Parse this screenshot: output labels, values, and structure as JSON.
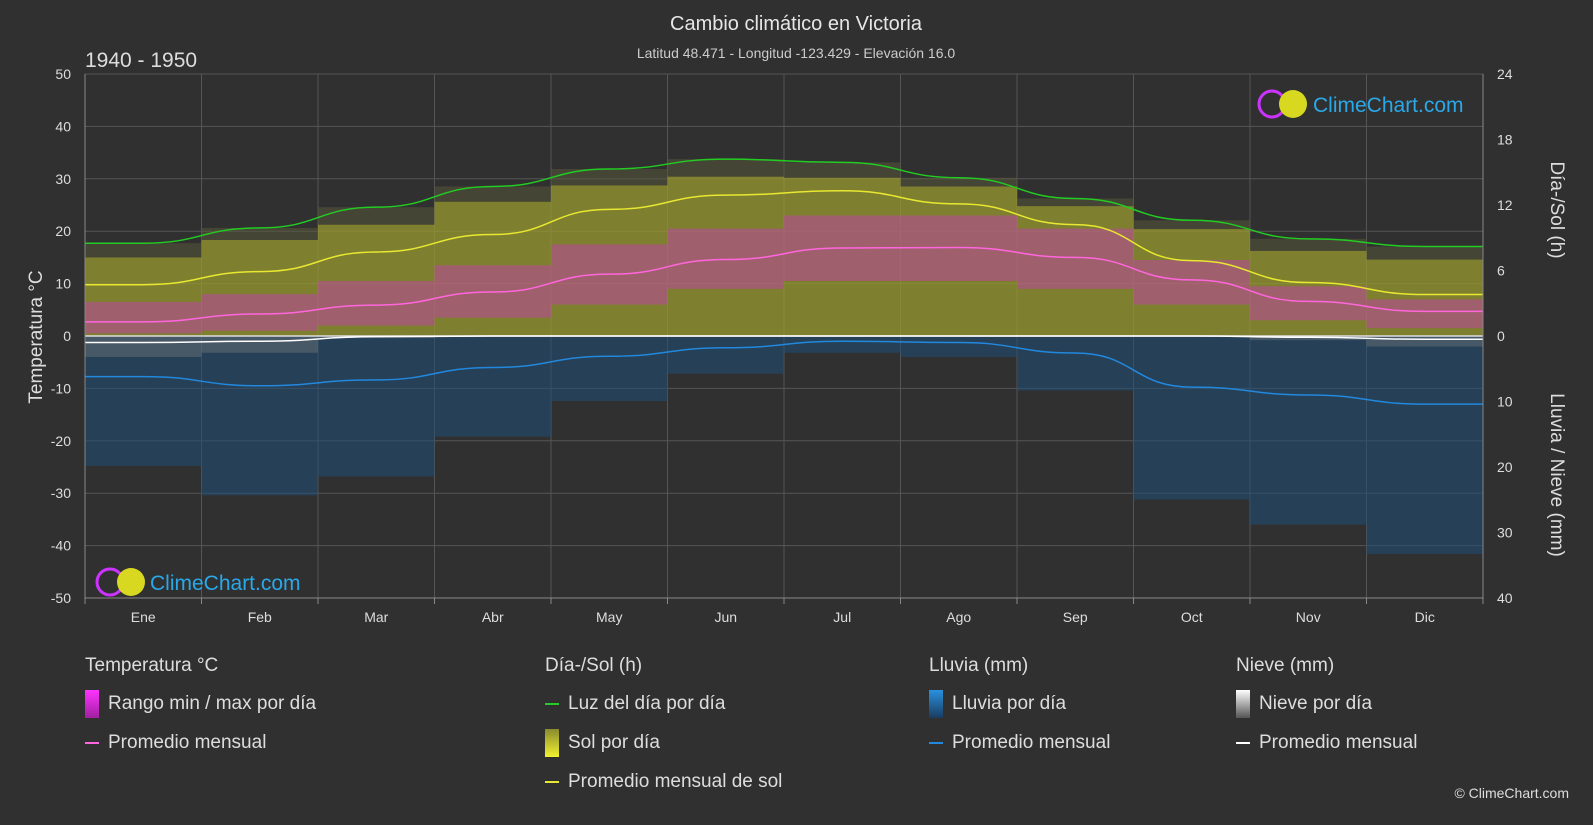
{
  "title": "Cambio climático en Victoria",
  "subtitle": "Latitud 48.471 - Longitud -123.429 - Elevación 16.0",
  "period": "1940 - 1950",
  "brand": "ClimeChart.com",
  "copyright": "© ClimeChart.com",
  "colors": {
    "background": "#303030",
    "grid": "#555555",
    "daylight": "#22cc22",
    "sun_fill": "#9a9a30",
    "sun_line": "#e8e830",
    "temp_range": "#c040a8",
    "temp_line": "#ff66dd",
    "rain_fill": "#1f4f78",
    "rain_line": "#2288dd",
    "snow_line": "#ffffff",
    "brand_text": "#2aa8e8"
  },
  "chart_data": {
    "type": "area",
    "months": [
      "Ene",
      "Feb",
      "Mar",
      "Abr",
      "May",
      "Jun",
      "Jul",
      "Ago",
      "Sep",
      "Oct",
      "Nov",
      "Dic"
    ],
    "left_axis": {
      "label": "Temperatura °C",
      "range": [
        -50,
        50
      ],
      "ticks": [
        50,
        40,
        30,
        20,
        10,
        0,
        -10,
        -20,
        -30,
        -40,
        -50
      ]
    },
    "right_axis_top": {
      "label": "Día-/Sol (h)",
      "range": [
        0,
        24
      ],
      "ticks": [
        24,
        18,
        12,
        6,
        0
      ]
    },
    "right_axis_bottom": {
      "label": "Lluvia / Nieve (mm)",
      "range": [
        0,
        40
      ],
      "ticks": [
        0,
        10,
        20,
        30,
        40
      ]
    },
    "series": [
      {
        "name": "Luz del día por día",
        "unit": "h",
        "values": [
          8.5,
          9.9,
          11.8,
          13.7,
          15.3,
          16.2,
          15.9,
          14.5,
          12.6,
          10.6,
          8.9,
          8.2
        ]
      },
      {
        "name": "Sol por día",
        "unit": "h",
        "values": [
          7.2,
          8.8,
          10.2,
          12.3,
          13.8,
          14.6,
          14.5,
          13.7,
          11.9,
          9.8,
          7.8,
          7.0
        ]
      },
      {
        "name": "Promedio mensual de sol",
        "unit": "h",
        "values": [
          4.7,
          5.9,
          7.7,
          9.3,
          11.6,
          12.9,
          13.3,
          12.1,
          10.2,
          6.9,
          4.9,
          3.8
        ]
      },
      {
        "name": "Rango min / max por día",
        "unit": "°C",
        "min": [
          0.5,
          1.0,
          2.0,
          3.5,
          6.0,
          9.0,
          10.5,
          10.5,
          9.0,
          6.0,
          3.0,
          1.5
        ],
        "max": [
          6.5,
          8.0,
          10.5,
          13.5,
          17.5,
          20.5,
          23.0,
          23.0,
          20.5,
          14.5,
          9.5,
          7.0
        ]
      },
      {
        "name": "Promedio mensual",
        "unit": "°C",
        "values": [
          2.7,
          4.2,
          5.9,
          8.4,
          11.8,
          14.6,
          16.8,
          16.9,
          15.0,
          10.7,
          6.6,
          4.7
        ]
      },
      {
        "name": "Lluvia por día",
        "unit": "mm",
        "values": [
          6.2,
          7.6,
          6.7,
          4.8,
          3.1,
          1.8,
          0.8,
          1.0,
          2.6,
          7.8,
          9.0,
          10.4
        ]
      },
      {
        "name": "Promedio mensual",
        "unit": "mm",
        "values": [
          6.2,
          7.6,
          6.7,
          4.8,
          3.1,
          1.8,
          0.8,
          1.0,
          2.6,
          7.8,
          9.0,
          10.4
        ]
      },
      {
        "name": "Nieve por día",
        "unit": "mm",
        "values": [
          1.0,
          0.8,
          0.1,
          0,
          0,
          0,
          0,
          0,
          0,
          0,
          0.2,
          0.5
        ]
      },
      {
        "name": "Promedio mensual",
        "unit": "mm",
        "values": [
          1.0,
          0.8,
          0.1,
          0,
          0,
          0,
          0,
          0,
          0,
          0,
          0.2,
          0.5
        ]
      }
    ]
  },
  "legend": {
    "temperature": {
      "header": "Temperatura °C",
      "range": "Rango min / max por día",
      "avg": "Promedio mensual"
    },
    "sun": {
      "header": "Día-/Sol (h)",
      "daylight": "Luz del día por día",
      "sun": "Sol por día",
      "avg": "Promedio mensual de sol"
    },
    "rain": {
      "header": "Lluvia (mm)",
      "daily": "Lluvia por día",
      "avg": "Promedio mensual"
    },
    "snow": {
      "header": "Nieve (mm)",
      "daily": "Nieve por día",
      "avg": "Promedio mensual"
    }
  }
}
